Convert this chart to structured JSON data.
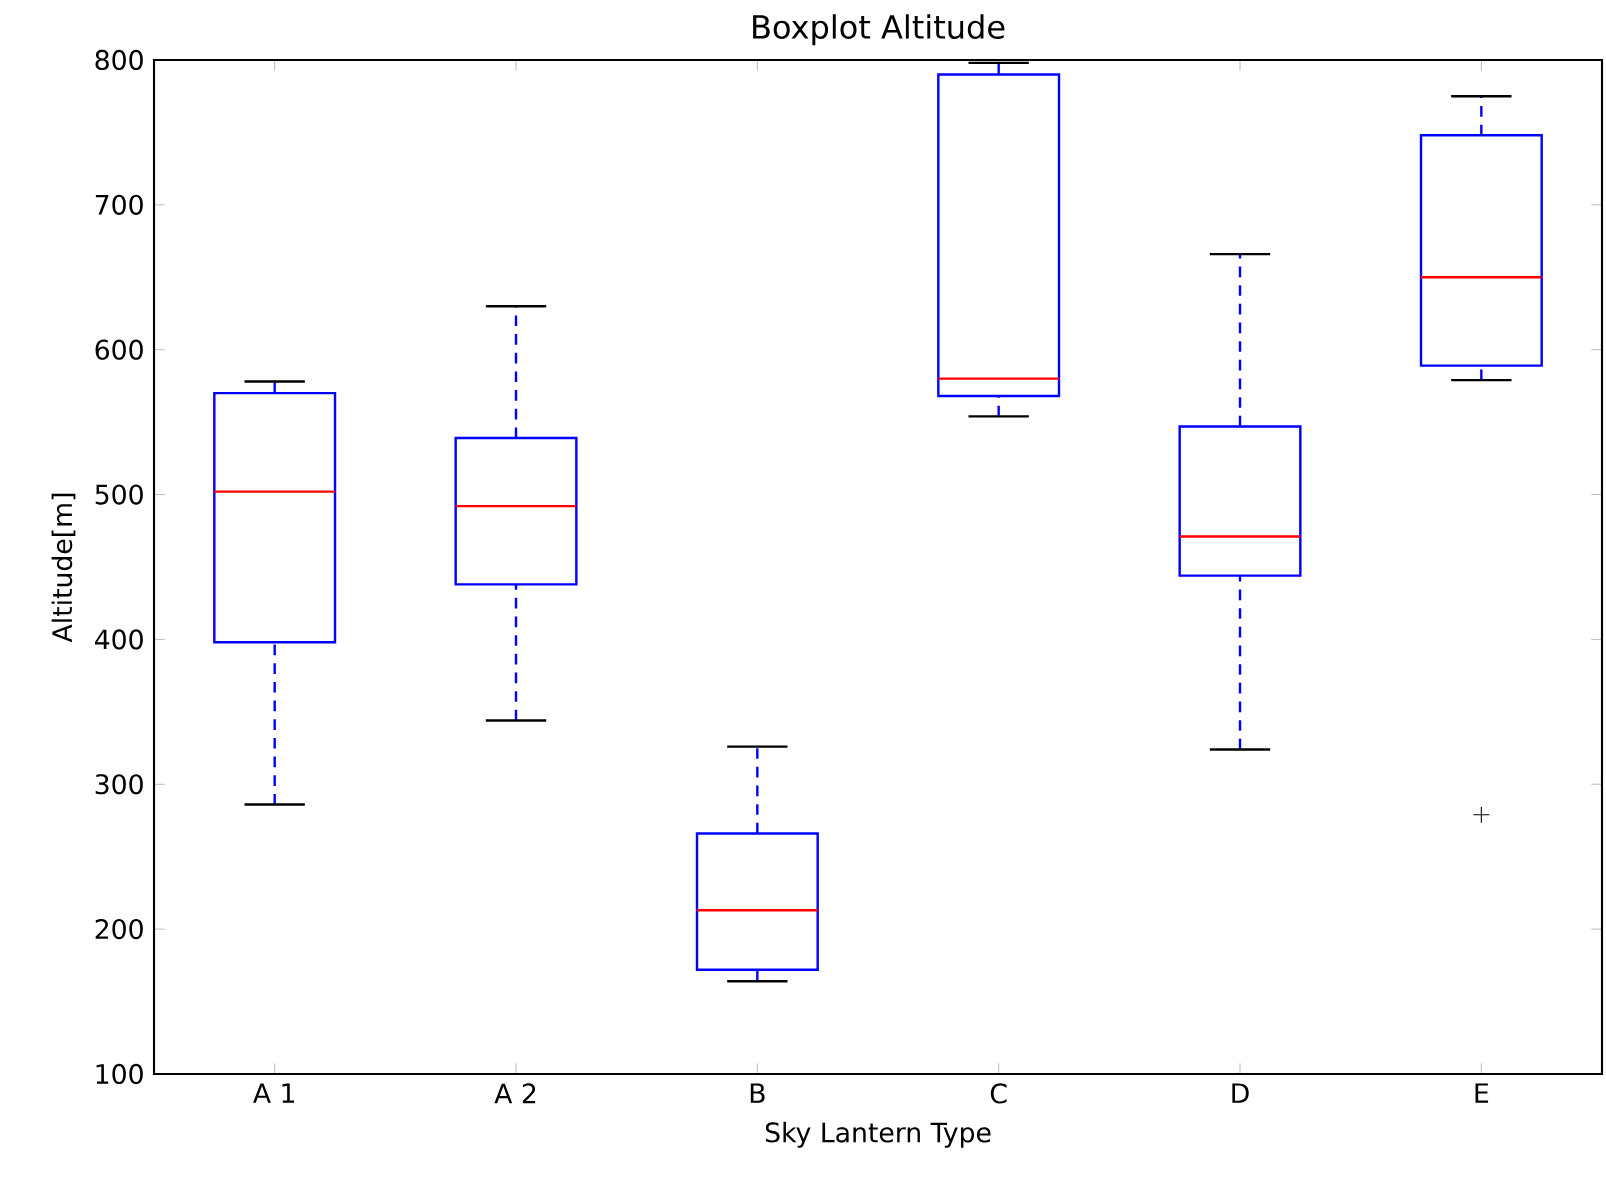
{
  "chart_data": {
    "type": "box",
    "title": "Boxplot Altitude",
    "xlabel": "Sky Lantern Type",
    "ylabel": "Altitude[m]",
    "categories": [
      "A 1",
      "A 2",
      "B",
      "C",
      "D",
      "E"
    ],
    "ylim": [
      100,
      800
    ],
    "yticks": [
      100,
      200,
      300,
      400,
      500,
      600,
      700,
      800
    ],
    "series": [
      {
        "color": "#0000ff",
        "boxes": [
          {
            "low": 286,
            "q1": 398,
            "median": 502,
            "q3": 570,
            "high": 578
          },
          {
            "low": 344,
            "q1": 438,
            "median": 492,
            "q3": 539,
            "high": 630
          },
          {
            "low": 164,
            "q1": 172,
            "median": 213,
            "q3": 266,
            "high": 326
          },
          {
            "low": 554,
            "q1": 568,
            "median": 580,
            "q3": 790,
            "high": 798
          },
          {
            "low": 324,
            "q1": 444,
            "median": 471,
            "q3": 547,
            "high": 666
          },
          {
            "low": 579,
            "q1": 589,
            "median": 650,
            "q3": 748,
            "high": 775,
            "outliers": [
              279
            ]
          }
        ]
      }
    ]
  }
}
